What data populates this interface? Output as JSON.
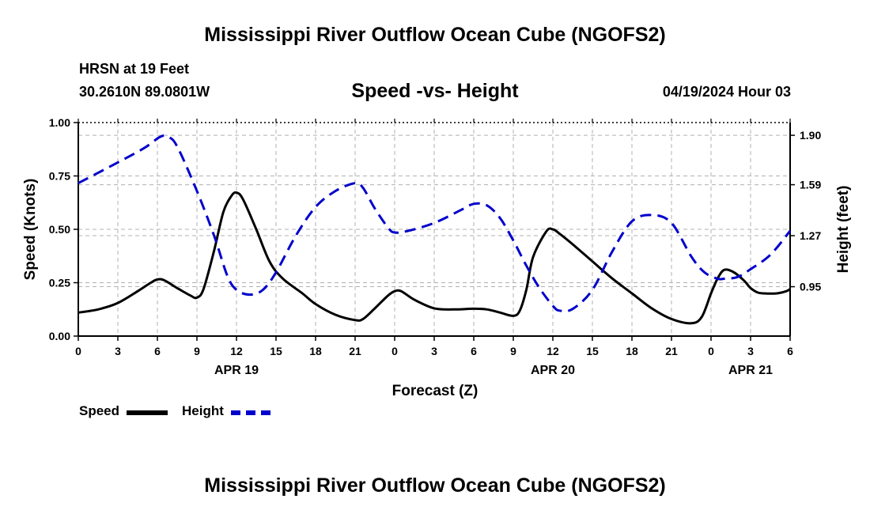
{
  "header": {
    "title": "Mississippi River Outflow Ocean Cube (NGOFS2)",
    "station": "HRSN at 19 Feet",
    "coords": "30.2610N  89.0801W",
    "subtitle": "Speed -vs- Height",
    "datetime": "04/19/2024 Hour 03"
  },
  "footer": {
    "title": "Mississippi River Outflow Ocean Cube (NGOFS2)"
  },
  "legend": {
    "speed_label": "Speed",
    "height_label": "Height"
  },
  "colors": {
    "speed": "#000000",
    "height": "#0000cc",
    "grid": "#b0b0b0"
  },
  "chart_data": {
    "type": "line",
    "xlabel": "Forecast (Z)",
    "ylabel_left": "Speed (Knots)",
    "ylabel_right": "Height (feet)",
    "x_units": "hours from 04/18 00Z",
    "xlim": [
      24,
      78
    ],
    "ylim_left": [
      0,
      1.0
    ],
    "ylim_right": [
      0.64,
      1.98
    ],
    "left_ticks": [
      "0.00",
      "0.25",
      "0.50",
      "0.75",
      "1.00"
    ],
    "left_tick_values": [
      0,
      0.25,
      0.5,
      0.75,
      1.0
    ],
    "right_ticks": [
      "0.95",
      "1.27",
      "1.59",
      "1.90"
    ],
    "right_tick_values": [
      0.95,
      1.27,
      1.59,
      1.9
    ],
    "x_tick_labels": [
      "0",
      "3",
      "6",
      "9",
      "12",
      "15",
      "18",
      "21",
      "0",
      "3",
      "6",
      "9",
      "12",
      "15",
      "18",
      "21",
      "0",
      "3",
      "6"
    ],
    "x_tick_values": [
      24,
      27,
      30,
      33,
      36,
      39,
      42,
      45,
      48,
      51,
      54,
      57,
      60,
      63,
      66,
      69,
      72,
      75,
      78
    ],
    "date_labels": [
      {
        "label": "APR 19",
        "x": 36
      },
      {
        "label": "APR 20",
        "x": 60
      },
      {
        "label": "APR 21",
        "x": 75
      }
    ],
    "series": [
      {
        "name": "Speed",
        "axis": "left",
        "style": "solid",
        "x": [
          24,
          25.5,
          27,
          28.5,
          29.5,
          30,
          30.5,
          31.5,
          32.5,
          33,
          33.5,
          34.3,
          35,
          35.6,
          36,
          36.5,
          37.5,
          38.5,
          39.5,
          41,
          42,
          43.5,
          45,
          45.6,
          46.5,
          47.5,
          48,
          48.5,
          49.5,
          51,
          52.5,
          54,
          55,
          56,
          57,
          57.5,
          58,
          58.5,
          59.5,
          60,
          60.5,
          61.5,
          63,
          64.5,
          66,
          67.5,
          69,
          70.5,
          71.3,
          72,
          72.5,
          73,
          73.7,
          74.5,
          75,
          75.5,
          76,
          77,
          77.7,
          78
        ],
        "values": [
          0.11,
          0.125,
          0.155,
          0.21,
          0.25,
          0.265,
          0.262,
          0.225,
          0.19,
          0.18,
          0.22,
          0.4,
          0.58,
          0.655,
          0.672,
          0.64,
          0.5,
          0.35,
          0.27,
          0.2,
          0.15,
          0.1,
          0.075,
          0.08,
          0.13,
          0.19,
          0.21,
          0.21,
          0.17,
          0.13,
          0.125,
          0.128,
          0.125,
          0.11,
          0.095,
          0.12,
          0.22,
          0.37,
          0.49,
          0.5,
          0.48,
          0.43,
          0.35,
          0.27,
          0.2,
          0.13,
          0.08,
          0.06,
          0.09,
          0.2,
          0.27,
          0.31,
          0.3,
          0.26,
          0.225,
          0.205,
          0.2,
          0.2,
          0.21,
          0.22
        ]
      },
      {
        "name": "Height",
        "axis": "right",
        "style": "dashed",
        "x": [
          24,
          27,
          29,
          30.2,
          30.8,
          31.5,
          33,
          34.3,
          35.3,
          36,
          37,
          38,
          39,
          40.5,
          42,
          43.5,
          45,
          45.6,
          46.5,
          47.5,
          48,
          49,
          51,
          53,
          54,
          55,
          56,
          57,
          58,
          59,
          60,
          60.5,
          61.5,
          63,
          64.5,
          66,
          67.5,
          69,
          70.5,
          71.5,
          72.5,
          73,
          74,
          75,
          76.5,
          78
        ],
        "values": [
          1.6,
          1.73,
          1.82,
          1.89,
          1.89,
          1.83,
          1.55,
          1.27,
          1.02,
          0.93,
          0.9,
          0.93,
          1.04,
          1.27,
          1.45,
          1.55,
          1.6,
          1.57,
          1.44,
          1.32,
          1.29,
          1.3,
          1.35,
          1.43,
          1.47,
          1.46,
          1.38,
          1.24,
          1.08,
          0.94,
          0.83,
          0.8,
          0.81,
          0.93,
          1.17,
          1.36,
          1.4,
          1.35,
          1.14,
          1.04,
          1.0,
          1.0,
          1.01,
          1.06,
          1.15,
          1.3
        ]
      }
    ]
  }
}
